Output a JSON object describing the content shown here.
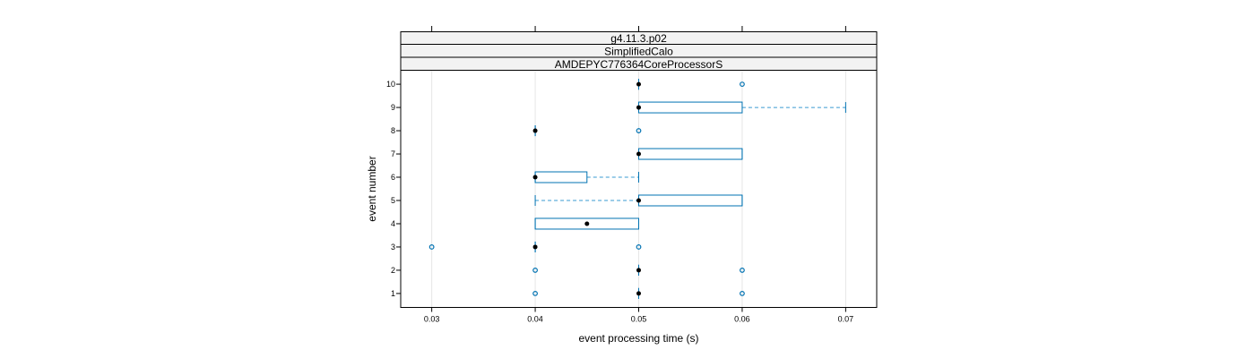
{
  "chart_data": {
    "type": "boxplot",
    "strips": [
      "g4.11.3.p02",
      "SimplifiedCalo",
      "AMDEPYC776364CoreProcessorS"
    ],
    "xlabel": "event processing time (s)",
    "ylabel": "event number",
    "xlim": [
      0.027,
      0.073
    ],
    "ylim": [
      0.4,
      10.6
    ],
    "x_ticks": [
      "0.03",
      "0.04",
      "0.05",
      "0.06",
      "0.07"
    ],
    "y_ticks": [
      "1",
      "2",
      "3",
      "4",
      "5",
      "6",
      "7",
      "8",
      "9",
      "10"
    ],
    "grid": true,
    "box_color": "#0072b2",
    "whisker_color": "#3a9bd1",
    "median_color": "#000000",
    "boxes": [
      {
        "event": 1,
        "q1": 0.05,
        "median": 0.05,
        "q3": 0.05,
        "whisker_low": 0.05,
        "whisker_high": 0.05,
        "outliers": [
          0.04,
          0.06
        ]
      },
      {
        "event": 2,
        "q1": 0.05,
        "median": 0.05,
        "q3": 0.05,
        "whisker_low": 0.05,
        "whisker_high": 0.05,
        "outliers": [
          0.04,
          0.06
        ]
      },
      {
        "event": 3,
        "q1": 0.04,
        "median": 0.04,
        "q3": 0.04,
        "whisker_low": 0.04,
        "whisker_high": 0.04,
        "outliers": [
          0.03,
          0.05
        ]
      },
      {
        "event": 4,
        "q1": 0.04,
        "median": 0.045,
        "q3": 0.05,
        "whisker_low": 0.04,
        "whisker_high": 0.05,
        "outliers": []
      },
      {
        "event": 5,
        "q1": 0.05,
        "median": 0.05,
        "q3": 0.06,
        "whisker_low": 0.04,
        "whisker_high": 0.06,
        "outliers": []
      },
      {
        "event": 6,
        "q1": 0.04,
        "median": 0.04,
        "q3": 0.045,
        "whisker_low": 0.04,
        "whisker_high": 0.05,
        "outliers": []
      },
      {
        "event": 7,
        "q1": 0.05,
        "median": 0.05,
        "q3": 0.06,
        "whisker_low": 0.05,
        "whisker_high": 0.06,
        "outliers": []
      },
      {
        "event": 8,
        "q1": 0.04,
        "median": 0.04,
        "q3": 0.04,
        "whisker_low": 0.04,
        "whisker_high": 0.04,
        "outliers": [
          0.05
        ]
      },
      {
        "event": 9,
        "q1": 0.05,
        "median": 0.05,
        "q3": 0.06,
        "whisker_low": 0.05,
        "whisker_high": 0.07,
        "outliers": []
      },
      {
        "event": 10,
        "q1": 0.05,
        "median": 0.05,
        "q3": 0.05,
        "whisker_low": 0.05,
        "whisker_high": 0.05,
        "outliers": [
          0.06
        ]
      }
    ]
  }
}
